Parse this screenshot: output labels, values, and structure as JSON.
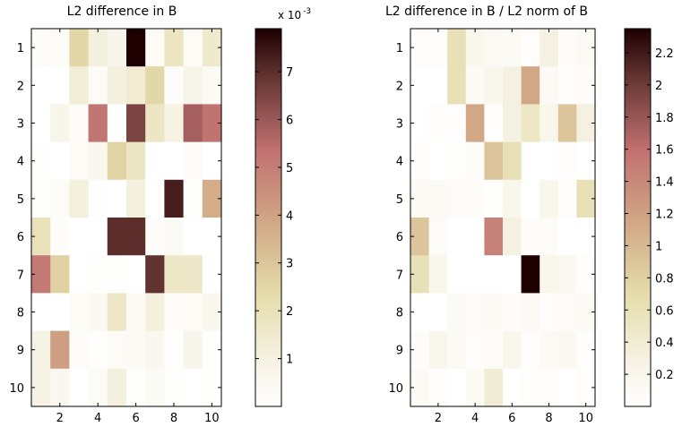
{
  "chart_data": [
    {
      "type": "heatmap",
      "title": "L2 difference in B",
      "xlabel": "",
      "ylabel": "",
      "x_ticks": [
        "2",
        "4",
        "6",
        "8",
        "10"
      ],
      "y_ticks": [
        "1",
        "2",
        "3",
        "4",
        "5",
        "6",
        "7",
        "8",
        "9",
        "10"
      ],
      "rows": [
        1,
        2,
        3,
        4,
        5,
        6,
        7,
        8,
        9,
        10
      ],
      "cols": [
        1,
        2,
        3,
        4,
        5,
        6,
        7,
        8,
        9,
        10
      ],
      "values": [
        [
          0.2,
          0.3,
          2.5,
          1.1,
          0.7,
          7.9,
          0.3,
          1.8,
          0.3,
          1.5
        ],
        [
          0.0,
          0.0,
          1.3,
          0.3,
          1.1,
          1.4,
          2.5,
          0.2,
          0.8,
          0.4
        ],
        [
          0.0,
          0.7,
          0.2,
          5.2,
          0.0,
          6.5,
          1.7,
          0.9,
          5.8,
          5.3
        ],
        [
          0.1,
          0.0,
          0.3,
          0.6,
          2.6,
          1.7,
          0.0,
          0.0,
          0.2,
          0.0
        ],
        [
          0.1,
          0.3,
          1.1,
          0.1,
          0.0,
          1.1,
          0.0,
          7.3,
          0.1,
          3.7
        ],
        [
          2.0,
          0.2,
          0.0,
          0.0,
          7.0,
          7.0,
          0.2,
          0.4,
          0.0,
          0.0
        ],
        [
          5.1,
          2.7,
          0.0,
          0.1,
          0.1,
          0.0,
          6.9,
          1.6,
          1.6,
          0.0
        ],
        [
          0.0,
          0.0,
          0.3,
          0.5,
          1.6,
          0.4,
          1.1,
          0.2,
          0.3,
          0.6
        ],
        [
          0.9,
          4.1,
          0.2,
          0.1,
          0.3,
          0.4,
          0.6,
          0.1,
          0.7,
          0.1
        ],
        [
          0.9,
          0.6,
          0.0,
          0.3,
          1.1,
          0.1,
          0.4,
          0.1,
          0.0,
          0.1
        ]
      ],
      "colorbar": {
        "min": 0,
        "max": 7.9,
        "ticks": [
          "1",
          "2",
          "3",
          "4",
          "5",
          "6",
          "7"
        ],
        "tick_values": [
          1,
          2,
          3,
          4,
          5,
          6,
          7
        ],
        "exponent_label": "x 10",
        "exponent_power": "-3"
      },
      "colormap": "pink (reversed)",
      "grid": false
    },
    {
      "type": "heatmap",
      "title": "L2 difference in B / L2 norm of B",
      "xlabel": "",
      "ylabel": "",
      "x_ticks": [
        "2",
        "4",
        "6",
        "8",
        "10"
      ],
      "y_ticks": [
        "1",
        "2",
        "3",
        "4",
        "5",
        "6",
        "7",
        "8",
        "9",
        "10"
      ],
      "rows": [
        1,
        2,
        3,
        4,
        5,
        6,
        7,
        8,
        9,
        10
      ],
      "cols": [
        1,
        2,
        3,
        4,
        5,
        6,
        7,
        8,
        9,
        10
      ],
      "values": [
        [
          0.04,
          0.04,
          0.6,
          0.2,
          0.12,
          0.1,
          0.04,
          0.3,
          0.06,
          0.1
        ],
        [
          0.0,
          0.0,
          0.6,
          0.1,
          0.2,
          0.3,
          1.15,
          0.1,
          0.04,
          0.06
        ],
        [
          0.0,
          0.04,
          0.04,
          1.15,
          0.04,
          0.3,
          0.5,
          0.2,
          0.9,
          0.3
        ],
        [
          0.04,
          0.0,
          0.02,
          0.06,
          0.9,
          0.6,
          0.0,
          0.0,
          0.04,
          0.0
        ],
        [
          0.1,
          0.1,
          0.08,
          0.06,
          0.02,
          0.2,
          0.0,
          0.2,
          0.04,
          0.6
        ],
        [
          0.9,
          0.08,
          0.0,
          0.0,
          1.45,
          0.3,
          0.06,
          0.08,
          0.0,
          0.0
        ],
        [
          0.6,
          0.2,
          0.0,
          0.0,
          0.0,
          0.0,
          2.35,
          0.2,
          0.15,
          0.04
        ],
        [
          0.0,
          0.0,
          0.1,
          0.08,
          0.1,
          0.06,
          0.1,
          0.04,
          0.08,
          0.1
        ],
        [
          0.06,
          0.2,
          0.1,
          0.04,
          0.06,
          0.2,
          0.04,
          0.1,
          0.15,
          0.04
        ],
        [
          0.1,
          0.04,
          0.0,
          0.1,
          0.4,
          0.0,
          0.04,
          0.04,
          0.0,
          0.04
        ]
      ],
      "colorbar": {
        "min": 0,
        "max": 2.35,
        "ticks": [
          "0.2",
          "0.4",
          "0.6",
          "0.8",
          "1",
          "1.2",
          "1.4",
          "1.6",
          "1.8",
          "2",
          "2.2"
        ],
        "tick_values": [
          0.2,
          0.4,
          0.6,
          0.8,
          1.0,
          1.2,
          1.4,
          1.6,
          1.8,
          2.0,
          2.2
        ]
      },
      "colormap": "pink (reversed)",
      "grid": false
    }
  ]
}
